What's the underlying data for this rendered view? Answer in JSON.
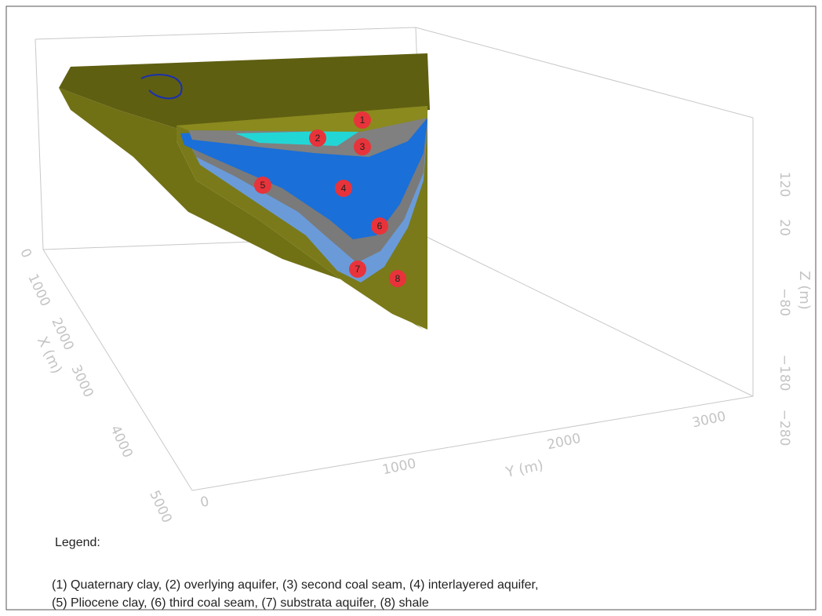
{
  "axes": {
    "z": {
      "label": "Z (m)",
      "ticks": [
        "120",
        "20",
        "−80",
        "−180",
        "−280"
      ]
    },
    "y": {
      "label": "Y (m)",
      "ticks": [
        "0",
        "1000",
        "2000",
        "3000"
      ]
    },
    "x": {
      "label": "X (m)",
      "ticks": [
        "0",
        "1000",
        "2000",
        "3000",
        "4000",
        "5000"
      ]
    }
  },
  "markers": [
    "1",
    "2",
    "3",
    "4",
    "5",
    "6",
    "7",
    "8"
  ],
  "legend": {
    "title": "Legend:",
    "lines": [
      "(1) Quaternary clay, (2) overlying aquifer, (3) second coal seam, (4) interlayered aquifer,",
      "(5) Pliocene clay, (6) third coal seam, (7) substrata aquifer, (8) shale"
    ]
  }
}
